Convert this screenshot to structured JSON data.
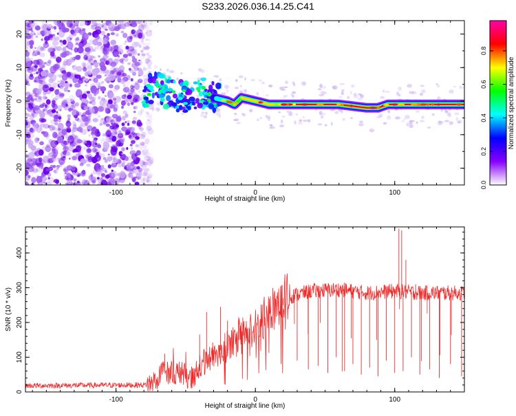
{
  "title": "S233.2026.036.14.25.C41",
  "chart_data": [
    {
      "type": "heatmap",
      "name": "spectrogram",
      "xlabel": "Height of straight line (km)",
      "ylabel": "Frequency (Hz)",
      "xlim": [
        -165,
        150
      ],
      "ylim": [
        -25,
        24
      ],
      "x_ticks": [
        -100,
        0,
        100
      ],
      "y_ticks": [
        -20,
        -10,
        0,
        10,
        20
      ],
      "colorbar": {
        "label": "Normalized spectral amplitude",
        "ticks": [
          "0.0",
          "0.2",
          "0.4",
          "0.6",
          "0.8"
        ],
        "tick_values": [
          0.0,
          0.2,
          0.4,
          0.6,
          0.8
        ],
        "range": [
          0,
          0.98
        ],
        "colors": [
          "#ffffff",
          "#8800ff",
          "#0000ff",
          "#00ffff",
          "#00ff00",
          "#ffff00",
          "#ff0000",
          "#ff00aa"
        ]
      },
      "ridge": {
        "x": [
          -78,
          -70,
          -60,
          -50,
          -40,
          -30,
          -20,
          -15,
          -10,
          0,
          10,
          20,
          40,
          60,
          80,
          88,
          95,
          110,
          150
        ],
        "y": [
          3,
          4,
          2,
          1,
          3,
          1,
          0,
          -1,
          1,
          0,
          -1,
          -1,
          -1,
          -1,
          -2,
          -2,
          -1,
          -1,
          -1
        ]
      }
    },
    {
      "type": "line",
      "name": "snr",
      "xlabel": "Height of straight line (km)",
      "ylabel": "SNR (10 * v/v)",
      "xlim": [
        -165,
        150
      ],
      "ylim": [
        0,
        475
      ],
      "x_ticks": [
        -100,
        0,
        100
      ],
      "y_ticks": [
        0,
        100,
        200,
        300,
        400
      ],
      "color": "#ee2a2a",
      "envelope": {
        "x": [
          -165,
          -80,
          -75,
          -65,
          -55,
          -45,
          -40,
          -30,
          -20,
          -10,
          0,
          10,
          20,
          30,
          40,
          60,
          80,
          100,
          120,
          150
        ],
        "y": [
          18,
          20,
          25,
          60,
          55,
          40,
          70,
          110,
          130,
          155,
          185,
          230,
          270,
          280,
          290,
          295,
          285,
          290,
          285,
          285
        ]
      },
      "spikes": {
        "x": [
          -65,
          -40,
          -35,
          -25,
          -20,
          -12,
          5,
          20,
          103,
          105,
          108,
          115
        ],
        "y": [
          110,
          165,
          230,
          245,
          205,
          215,
          200,
          250,
          470,
          465,
          380,
          310
        ]
      },
      "dips": {
        "x": [
          30,
          38,
          45,
          52,
          58,
          64,
          70,
          76,
          82,
          88,
          94,
          100,
          106,
          112,
          118,
          125,
          132,
          140,
          148
        ],
        "y": [
          90,
          65,
          75,
          55,
          100,
          60,
          80,
          50,
          70,
          45,
          90,
          55,
          60,
          100,
          50,
          65,
          40,
          80,
          45
        ]
      }
    }
  ]
}
